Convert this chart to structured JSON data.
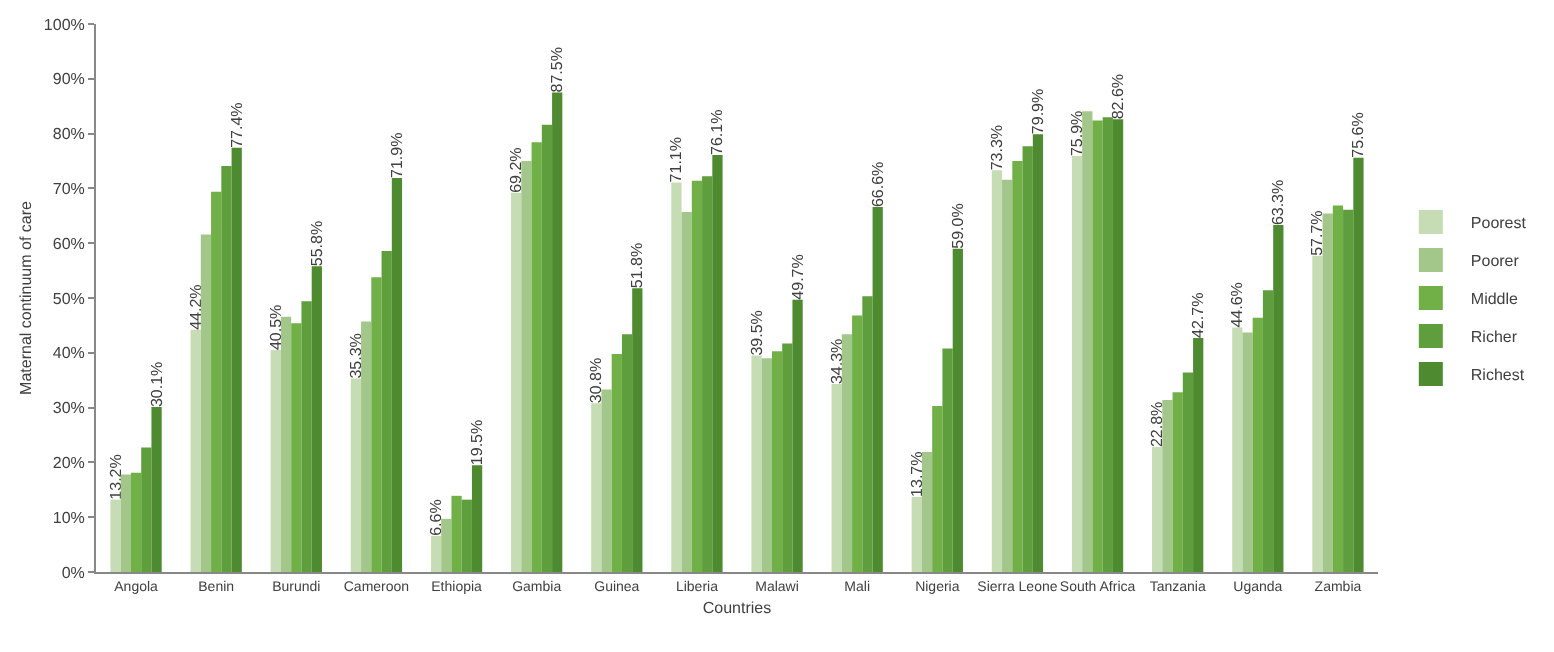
{
  "chart_data": {
    "type": "bar",
    "xlabel": "Countries",
    "ylabel": "Maternal continuum of care",
    "categories": [
      "Angola",
      "Benin",
      "Burundi",
      "Cameroon",
      "Ethiopia",
      "Gambia",
      "Guinea",
      "Liberia",
      "Malawi",
      "Mali",
      "Nigeria",
      "Sierra Leone",
      "South Africa",
      "Tanzania",
      "Uganda",
      "Zambia"
    ],
    "series": [
      {
        "name": "Poorest",
        "color": "#c5dcb5",
        "values": [
          13.2,
          44.2,
          40.5,
          35.3,
          6.6,
          69.2,
          30.8,
          71.1,
          39.5,
          34.3,
          13.7,
          73.3,
          75.9,
          22.8,
          44.6,
          57.7
        ],
        "value_labels": [
          "13.2%",
          "44.2%",
          "40.5%",
          "35.3%",
          "6.6%",
          "69.2%",
          "30.8%",
          "71.1%",
          "39.5%",
          "34.3%",
          "13.7%",
          "73.3%",
          "75.9%",
          "22.8%",
          "44.6%",
          "57.7%"
        ]
      },
      {
        "name": "Poorer",
        "color": "#a3c78a",
        "values": [
          17.8,
          61.6,
          46.6,
          45.7,
          9.7,
          75.0,
          33.3,
          65.7,
          39.0,
          43.4,
          21.9,
          71.6,
          84.1,
          31.4,
          43.7,
          65.4
        ]
      },
      {
        "name": "Middle",
        "color": "#70b047",
        "values": [
          18.1,
          69.4,
          45.4,
          53.8,
          13.9,
          78.4,
          39.8,
          71.4,
          40.3,
          46.8,
          30.3,
          75.0,
          82.4,
          32.8,
          46.4,
          66.9
        ]
      },
      {
        "name": "Richer",
        "color": "#5e9e3c",
        "values": [
          22.7,
          74.1,
          49.4,
          58.6,
          13.2,
          81.6,
          43.4,
          72.2,
          41.7,
          50.3,
          40.8,
          77.7,
          83.0,
          36.4,
          51.4,
          66.1
        ]
      },
      {
        "name": "Richest",
        "color": "#4e8a30",
        "values": [
          30.1,
          77.4,
          55.8,
          71.9,
          19.5,
          87.5,
          51.8,
          76.1,
          49.7,
          66.6,
          59.0,
          79.9,
          82.6,
          42.7,
          63.3,
          75.6
        ],
        "value_labels": [
          "30.1%",
          "77.4%",
          "55.8%",
          "71.9%",
          "19.5%",
          "87.5%",
          "51.8%",
          "76.1%",
          "49.7%",
          "66.6%",
          "59.0%",
          "79.9%",
          "82.6%",
          "42.7%",
          "63.3%",
          "75.6%"
        ]
      }
    ],
    "ylim": [
      0,
      100
    ],
    "yticks": [
      {
        "value": 0,
        "label": "0%"
      },
      {
        "value": 10,
        "label": "10%"
      },
      {
        "value": 20,
        "label": "20%"
      },
      {
        "value": 30,
        "label": "30%"
      },
      {
        "value": 40,
        "label": "40%"
      },
      {
        "value": 50,
        "label": "50%"
      },
      {
        "value": 60,
        "label": "60%"
      },
      {
        "value": 70,
        "label": "70%"
      },
      {
        "value": 80,
        "label": "80%"
      },
      {
        "value": 90,
        "label": "90%"
      },
      {
        "value": 100,
        "label": "100%"
      }
    ],
    "legend": "right"
  }
}
